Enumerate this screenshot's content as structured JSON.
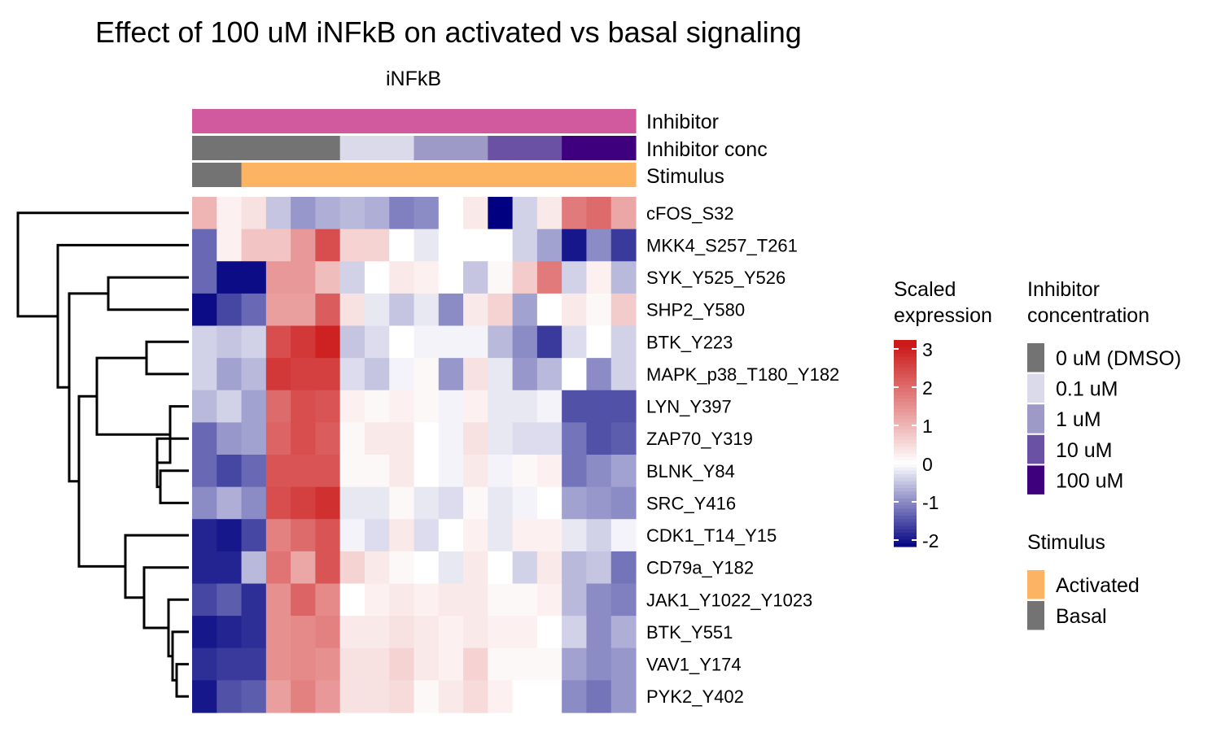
{
  "chart_data": {
    "type": "heatmap",
    "title": "Effect of 100 uM iNFkB on activated vs basal signaling",
    "column_split_label": "iNFkB",
    "annotation_labels": [
      "Inhibitor",
      "Inhibitor conc",
      "Stimulus"
    ],
    "columns": [
      {
        "inhibitor": "iNFkB",
        "conc": "0 uM (DMSO)",
        "stimulus": "Basal"
      },
      {
        "inhibitor": "iNFkB",
        "conc": "0 uM (DMSO)",
        "stimulus": "Basal"
      },
      {
        "inhibitor": "iNFkB",
        "conc": "0 uM (DMSO)",
        "stimulus": "Activated"
      },
      {
        "inhibitor": "iNFkB",
        "conc": "0 uM (DMSO)",
        "stimulus": "Activated"
      },
      {
        "inhibitor": "iNFkB",
        "conc": "0 uM (DMSO)",
        "stimulus": "Activated"
      },
      {
        "inhibitor": "iNFkB",
        "conc": "0 uM (DMSO)",
        "stimulus": "Activated"
      },
      {
        "inhibitor": "iNFkB",
        "conc": "0.1 uM",
        "stimulus": "Activated"
      },
      {
        "inhibitor": "iNFkB",
        "conc": "0.1 uM",
        "stimulus": "Activated"
      },
      {
        "inhibitor": "iNFkB",
        "conc": "0.1 uM",
        "stimulus": "Activated"
      },
      {
        "inhibitor": "iNFkB",
        "conc": "1 uM",
        "stimulus": "Activated"
      },
      {
        "inhibitor": "iNFkB",
        "conc": "1 uM",
        "stimulus": "Activated"
      },
      {
        "inhibitor": "iNFkB",
        "conc": "1 uM",
        "stimulus": "Activated"
      },
      {
        "inhibitor": "iNFkB",
        "conc": "10 uM",
        "stimulus": "Activated"
      },
      {
        "inhibitor": "iNFkB",
        "conc": "10 uM",
        "stimulus": "Activated"
      },
      {
        "inhibitor": "iNFkB",
        "conc": "10 uM",
        "stimulus": "Activated"
      },
      {
        "inhibitor": "iNFkB",
        "conc": "100 uM",
        "stimulus": "Activated"
      },
      {
        "inhibitor": "iNFkB",
        "conc": "100 uM",
        "stimulus": "Activated"
      },
      {
        "inhibitor": "iNFkB",
        "conc": "100 uM",
        "stimulus": "Activated"
      }
    ],
    "rows": [
      "cFOS_S32",
      "MKK4_S257_T261",
      "SYK_Y525_Y526",
      "SHP2_Y580",
      "BTK_Y223",
      "MAPK_p38_T180_Y182",
      "LYN_Y397",
      "ZAP70_Y319",
      "BLNK_Y84",
      "SRC_Y416",
      "CDK1_T14_Y15",
      "CD79a_Y182",
      "JAK1_Y1022_Y1023",
      "BTK_Y551",
      "VAV1_Y174",
      "PYK2_Y402"
    ],
    "values": [
      [
        1.0,
        0.2,
        0.4,
        -0.5,
        -0.9,
        -0.7,
        -0.6,
        -0.7,
        -1.1,
        -1.0,
        0.0,
        0.3,
        -2.2,
        -0.4,
        0.3,
        1.8,
        2.0,
        1.2
      ],
      [
        -1.3,
        0.2,
        0.8,
        0.8,
        1.4,
        2.4,
        0.6,
        0.6,
        0.0,
        -0.2,
        0.0,
        0.0,
        0.0,
        -0.4,
        -0.8,
        -2.0,
        -1.0,
        -1.7
      ],
      [
        -1.3,
        -2.1,
        -2.1,
        1.4,
        1.4,
        0.9,
        -0.4,
        0.0,
        0.3,
        0.2,
        0.0,
        -0.5,
        0.1,
        0.7,
        1.8,
        -0.4,
        0.2,
        -0.6
      ],
      [
        -2.1,
        -1.6,
        -1.3,
        1.3,
        1.3,
        2.2,
        0.4,
        -0.2,
        -0.5,
        -0.2,
        -1.0,
        0.3,
        0.6,
        -0.8,
        0.0,
        0.3,
        0.1,
        0.7
      ],
      [
        -0.4,
        -0.5,
        -0.4,
        2.4,
        2.7,
        3.0,
        -0.5,
        -0.3,
        0.0,
        -0.1,
        -0.1,
        -0.1,
        -0.6,
        -1.0,
        -1.7,
        -0.3,
        0.0,
        -0.4
      ],
      [
        -0.4,
        -0.8,
        -0.6,
        2.7,
        2.6,
        2.6,
        -0.3,
        -0.5,
        -0.1,
        0.1,
        -0.9,
        0.4,
        -0.2,
        -0.9,
        -0.6,
        0.0,
        -1.0,
        -0.4
      ],
      [
        -0.6,
        -0.4,
        -0.8,
        2.0,
        2.4,
        2.3,
        0.2,
        0.1,
        0.2,
        0.1,
        -0.1,
        0.2,
        -0.2,
        -0.2,
        -0.1,
        -1.5,
        -1.5,
        -1.5
      ],
      [
        -1.3,
        -0.9,
        -0.8,
        2.1,
        2.4,
        2.2,
        0.1,
        0.3,
        0.3,
        0.0,
        -0.1,
        0.4,
        -0.2,
        -0.3,
        -0.3,
        -1.2,
        -1.5,
        -1.4
      ],
      [
        -1.3,
        -1.6,
        -1.3,
        2.3,
        2.3,
        2.3,
        0.1,
        0.1,
        0.3,
        0.0,
        -0.1,
        0.3,
        -0.1,
        0.1,
        0.2,
        -1.2,
        -1.0,
        -0.8
      ],
      [
        -1.0,
        -0.7,
        -1.0,
        2.4,
        2.6,
        2.8,
        -0.2,
        -0.2,
        0.1,
        -0.2,
        -0.3,
        0.1,
        -0.2,
        -0.1,
        0.0,
        -0.8,
        -0.9,
        -1.0
      ],
      [
        -1.9,
        -2.0,
        -1.6,
        1.7,
        2.0,
        2.3,
        -0.1,
        -0.3,
        0.3,
        -0.3,
        0.0,
        0.2,
        -0.2,
        0.2,
        0.2,
        -0.2,
        -0.4,
        -0.1
      ],
      [
        -1.9,
        -1.9,
        -0.6,
        1.9,
        1.2,
        2.3,
        0.6,
        0.3,
        0.1,
        0.0,
        -0.2,
        0.3,
        0.0,
        -0.4,
        0.3,
        -0.6,
        -0.5,
        -1.2
      ],
      [
        -1.6,
        -1.4,
        -1.8,
        1.5,
        2.1,
        1.6,
        0.0,
        0.2,
        0.3,
        0.2,
        0.3,
        0.3,
        0.1,
        0.1,
        0.2,
        -0.6,
        -1.0,
        -1.1
      ],
      [
        -2.0,
        -1.9,
        -1.8,
        1.5,
        1.6,
        1.7,
        0.3,
        0.3,
        0.4,
        0.3,
        0.2,
        0.3,
        0.2,
        0.2,
        0.0,
        -0.4,
        -1.0,
        -0.7
      ],
      [
        -1.8,
        -1.7,
        -1.7,
        1.5,
        1.6,
        1.5,
        0.4,
        0.4,
        0.6,
        0.3,
        0.2,
        0.6,
        0.1,
        0.1,
        0.1,
        -0.8,
        -1.0,
        -0.9
      ],
      [
        -2.0,
        -1.5,
        -1.4,
        1.3,
        1.7,
        1.4,
        0.4,
        0.4,
        0.5,
        0.1,
        0.3,
        0.5,
        0.2,
        0.0,
        0.0,
        -1.0,
        -1.2,
        -0.9
      ]
    ],
    "color_scale": {
      "title": [
        "Scaled",
        "expression"
      ],
      "ticks": [
        "3",
        "2",
        "1",
        "0",
        "-1",
        "-2"
      ],
      "min": -2.2,
      "max": 3.1,
      "low": "#000080",
      "mid": "#ffffff",
      "high": "#cc1a1a"
    },
    "annotation_colors": {
      "Inhibitor": {
        "iNFkB": "#d05a9d"
      },
      "Inhibitor conc": {
        "0 uM (DMSO)": "#737373",
        "0.1 uM": "#dadaeb",
        "1 uM": "#9e9ac8",
        "10 uM": "#6a51a3",
        "100 uM": "#3f007d"
      },
      "Stimulus": {
        "Activated": "#fdb462",
        "Basal": "#737373"
      }
    },
    "legends": {
      "concentration_title": [
        "Inhibitor",
        "concentration"
      ],
      "concentration_levels": [
        "0 uM (DMSO)",
        "0.1 uM",
        "1 uM",
        "10 uM",
        "100 uM"
      ],
      "stimulus_title": "Stimulus",
      "stimulus_levels": [
        "Activated",
        "Basal"
      ]
    },
    "row_dendrogram_order": [
      "cFOS_S32",
      "MKK4_S257_T261",
      "SYK_Y525_Y526",
      "SHP2_Y580",
      "BTK_Y223",
      "MAPK_p38_T180_Y182",
      "LYN_Y397",
      "ZAP70_Y319",
      "BLNK_Y84",
      "SRC_Y416",
      "CDK1_T14_Y15",
      "CD79a_Y182",
      "JAK1_Y1022_Y1023",
      "BTK_Y551",
      "VAV1_Y174",
      "PYK2_Y402"
    ]
  }
}
